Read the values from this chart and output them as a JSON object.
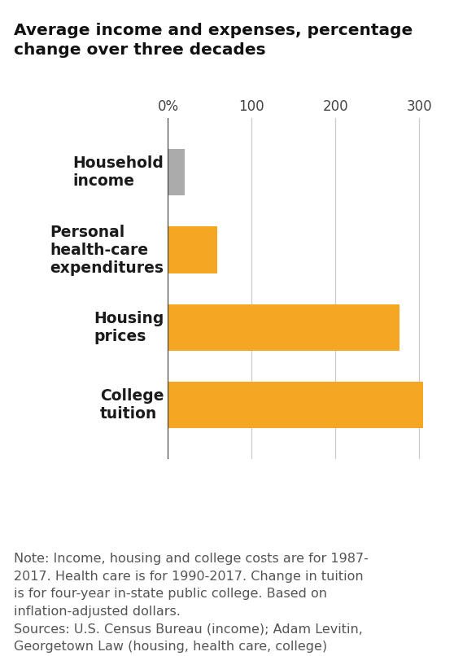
{
  "title": "Average income and expenses, percentage\nchange over three decades",
  "categories": [
    "Household\nincome",
    "Personal\nhealth-care\nexpenditures",
    "Housing\nprices",
    "College\ntuition"
  ],
  "values": [
    20,
    59,
    277,
    305
  ],
  "bar_colors": [
    "#ABABAB",
    "#F5A623",
    "#F5A623",
    "#F5A623"
  ],
  "xlim": [
    0,
    320
  ],
  "xticks": [
    0,
    100,
    200,
    300
  ],
  "xtick_labels": [
    "0%",
    "100",
    "200",
    "300"
  ],
  "background_color": "#FFFFFF",
  "bar_height": 0.6,
  "note_text": "Note: Income, housing and college costs are for 1987-\n2017. Health care is for 1990-2017. Change in tuition\nis for four-year in-state public college. Based on\ninflation-adjusted dollars.\nSources: U.S. Census Bureau (income); Adam Levitin,\nGeorgetown Law (housing, health care, college)",
  "title_fontsize": 14.5,
  "label_fontsize": 13.5,
  "note_fontsize": 11.5,
  "tick_fontsize": 12,
  "orange": "#F5A623",
  "gray": "#ABABAB",
  "line_color": "#333333",
  "grid_color": "#CCCCCC",
  "label_color": "#1a1a1a",
  "note_color": "#555555"
}
